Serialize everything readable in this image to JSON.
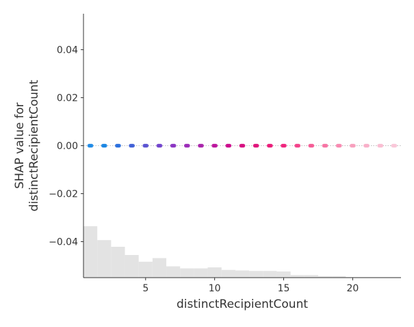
{
  "chart_data": {
    "type": "scatter",
    "title": "",
    "xlabel": "distinctRecipientCount",
    "ylabel_lines": [
      "SHAP value for",
      "distinctRecipientCount"
    ],
    "xlim": [
      0.5,
      23.5
    ],
    "ylim": [
      -0.055,
      0.055
    ],
    "x_ticks": [
      5,
      10,
      15,
      20
    ],
    "y_ticks": [
      0.04,
      0.02,
      0.0,
      -0.02,
      -0.04
    ],
    "y_tick_labels": [
      "0.04",
      "0.02",
      "0.00",
      "−0.02",
      "−0.04"
    ],
    "grid": false,
    "reference_line_y": 0.0,
    "points": [
      {
        "x": 1,
        "y": 0.0,
        "color": "#1f8be7"
      },
      {
        "x": 2,
        "y": 0.0,
        "color": "#1a85e2"
      },
      {
        "x": 3,
        "y": 0.0,
        "color": "#2a6fde"
      },
      {
        "x": 4,
        "y": 0.0,
        "color": "#3f5fd6"
      },
      {
        "x": 5,
        "y": 0.0,
        "color": "#5a52d2"
      },
      {
        "x": 6,
        "y": 0.0,
        "color": "#7043cc"
      },
      {
        "x": 7,
        "y": 0.0,
        "color": "#8a34c2"
      },
      {
        "x": 8,
        "y": 0.0,
        "color": "#9b2bb8"
      },
      {
        "x": 9,
        "y": 0.0,
        "color": "#a823aa"
      },
      {
        "x": 10,
        "y": 0.0,
        "color": "#bb149c"
      },
      {
        "x": 11,
        "y": 0.0,
        "color": "#cb0a8c"
      },
      {
        "x": 12,
        "y": 0.0,
        "color": "#d60e7f"
      },
      {
        "x": 13,
        "y": 0.0,
        "color": "#e0137a"
      },
      {
        "x": 14,
        "y": 0.0,
        "color": "#ea1a78"
      },
      {
        "x": 15,
        "y": 0.0,
        "color": "#f0247c"
      },
      {
        "x": 16,
        "y": 0.0,
        "color": "#f4418a"
      },
      {
        "x": 17,
        "y": 0.0,
        "color": "#f55b95"
      },
      {
        "x": 18,
        "y": 0.0,
        "color": "#f673a3"
      },
      {
        "x": 19,
        "y": 0.0,
        "color": "#f788b0"
      },
      {
        "x": 20,
        "y": 0.0,
        "color": "#f79ebd"
      },
      {
        "x": 21,
        "y": 0.0,
        "color": "#f8afc9"
      },
      {
        "x": 22,
        "y": 0.0,
        "color": "#f9bdd2"
      },
      {
        "x": 23,
        "y": 0.0,
        "color": "#fac6d8"
      }
    ],
    "histogram": {
      "color": "#e3e3e3",
      "bin_edges": [
        0.5,
        1.5,
        2.5,
        3.5,
        4.5,
        5.5,
        6.5,
        7.5,
        8.5,
        9.5,
        10.5,
        11.5,
        12.5,
        13.5,
        14.5,
        15.5,
        16.5,
        17.5,
        18.5,
        19.5,
        20.5,
        21.5,
        22.5,
        23.5
      ],
      "relative_heights": [
        1.0,
        0.73,
        0.6,
        0.44,
        0.31,
        0.38,
        0.22,
        0.18,
        0.18,
        0.2,
        0.15,
        0.14,
        0.13,
        0.13,
        0.12,
        0.05,
        0.05,
        0.03,
        0.03,
        0.01,
        0.01,
        0.01,
        0.01
      ]
    }
  }
}
